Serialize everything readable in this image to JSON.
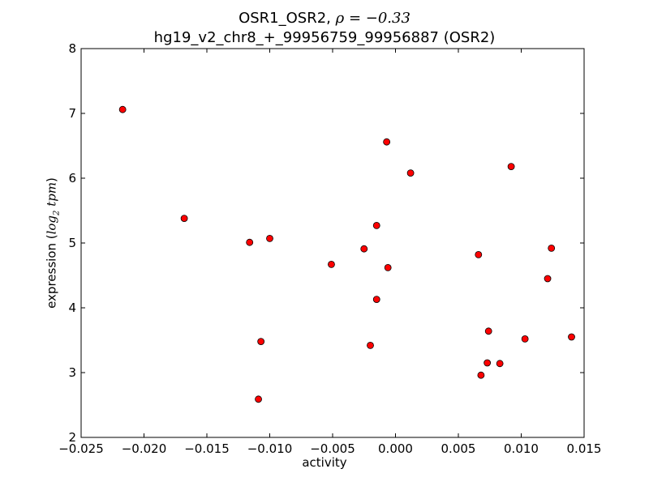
{
  "chart_data": {
    "type": "scatter",
    "title_line1_text": "OSR1_OSR2, ",
    "title_line1_math": "ρ = −0.33",
    "title_line2": "hg19_v2_chr8_+_99956759_99956887 (OSR2)",
    "xlabel": "activity",
    "ylabel_text": "expression (",
    "ylabel_math_base": "log",
    "ylabel_math_sub": "2",
    "ylabel_math_rest": "tpm",
    "ylabel_close": ")",
    "xlim": [
      -0.025,
      0.015
    ],
    "ylim": [
      2,
      8
    ],
    "xticks": [
      -0.025,
      -0.02,
      -0.015,
      -0.01,
      -0.005,
      0.0,
      0.005,
      0.01,
      0.015
    ],
    "xtick_labels": [
      "−0.025",
      "−0.020",
      "−0.015",
      "−0.010",
      "−0.005",
      "0.000",
      "0.005",
      "0.010",
      "0.015"
    ],
    "yticks": [
      2,
      3,
      4,
      5,
      6,
      7,
      8
    ],
    "ytick_labels": [
      "2",
      "3",
      "4",
      "5",
      "6",
      "7",
      "8"
    ],
    "grid": false,
    "marker_color": "#ff0000",
    "marker_edge": "#000000",
    "points": [
      {
        "x": -0.0217,
        "y": 7.06
      },
      {
        "x": -0.0168,
        "y": 5.38
      },
      {
        "x": -0.0116,
        "y": 5.01
      },
      {
        "x": -0.01,
        "y": 5.07
      },
      {
        "x": -0.0107,
        "y": 3.48
      },
      {
        "x": -0.0109,
        "y": 2.59
      },
      {
        "x": -0.0051,
        "y": 4.67
      },
      {
        "x": -0.0025,
        "y": 4.91
      },
      {
        "x": -0.002,
        "y": 3.42
      },
      {
        "x": -0.0015,
        "y": 5.27
      },
      {
        "x": -0.0015,
        "y": 4.13
      },
      {
        "x": -0.0007,
        "y": 6.56
      },
      {
        "x": -0.0006,
        "y": 4.62
      },
      {
        "x": 0.0012,
        "y": 6.08
      },
      {
        "x": 0.0066,
        "y": 4.82
      },
      {
        "x": 0.0068,
        "y": 2.96
      },
      {
        "x": 0.0073,
        "y": 3.15
      },
      {
        "x": 0.0074,
        "y": 3.64
      },
      {
        "x": 0.0083,
        "y": 3.14
      },
      {
        "x": 0.0092,
        "y": 6.18
      },
      {
        "x": 0.0103,
        "y": 3.52
      },
      {
        "x": 0.0121,
        "y": 4.45
      },
      {
        "x": 0.0124,
        "y": 4.92
      },
      {
        "x": 0.014,
        "y": 3.55
      }
    ]
  }
}
